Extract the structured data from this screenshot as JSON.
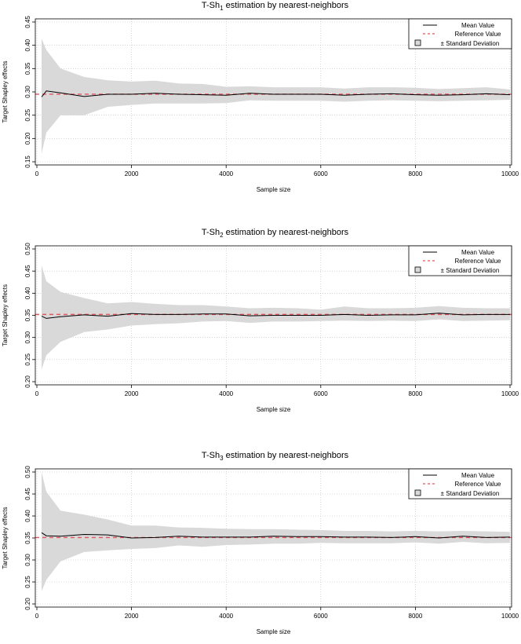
{
  "chart_data": [
    {
      "type": "line",
      "title": {
        "pre": "T-Sh",
        "sub": "1",
        "post": " estimation by nearest-neighbors"
      },
      "xlabel": "Sample size",
      "ylabel": "Target Shapley effects",
      "xlim": [
        0,
        10000
      ],
      "ylim": [
        0.15,
        0.45
      ],
      "xticks": [
        "0",
        "2000",
        "4000",
        "6000",
        "8000",
        "10000"
      ],
      "yticks": [
        "0.15",
        "0.20",
        "0.25",
        "0.30",
        "0.35",
        "0.40",
        "0.45"
      ],
      "grid": true,
      "legend_position": "top-right",
      "legend": [
        "Mean Value",
        "Reference Value",
        "± Standard Deviation"
      ],
      "reference_value": 0.295,
      "x": [
        100,
        200,
        500,
        1000,
        1500,
        2000,
        2500,
        3000,
        3500,
        4000,
        4500,
        5000,
        5500,
        6000,
        6500,
        7000,
        7500,
        8000,
        8500,
        9000,
        9500,
        10000
      ],
      "series": [
        {
          "name": "Mean Value",
          "values": [
            0.289,
            0.302,
            0.298,
            0.29,
            0.295,
            0.295,
            0.297,
            0.295,
            0.294,
            0.293,
            0.297,
            0.295,
            0.295,
            0.295,
            0.293,
            0.295,
            0.296,
            0.294,
            0.293,
            0.294,
            0.296,
            0.294
          ]
        },
        {
          "name": "± Standard Deviation upper",
          "values": [
            0.414,
            0.39,
            0.35,
            0.332,
            0.325,
            0.322,
            0.324,
            0.318,
            0.317,
            0.311,
            0.312,
            0.31,
            0.31,
            0.31,
            0.307,
            0.31,
            0.31,
            0.309,
            0.306,
            0.308,
            0.31,
            0.305
          ]
        },
        {
          "name": "± Standard Deviation lower",
          "values": [
            0.167,
            0.213,
            0.25,
            0.25,
            0.268,
            0.272,
            0.275,
            0.275,
            0.275,
            0.276,
            0.282,
            0.281,
            0.281,
            0.281,
            0.279,
            0.281,
            0.282,
            0.281,
            0.28,
            0.281,
            0.282,
            0.283
          ]
        }
      ],
      "colors": {
        "mean": "#000000",
        "reference": "#e8545e",
        "band": "#d9d9d9",
        "grid": "#bdbdbd"
      }
    },
    {
      "type": "line",
      "title": {
        "pre": "T-Sh",
        "sub": "2",
        "post": " estimation by nearest-neighbors"
      },
      "xlabel": "Sample size",
      "ylabel": "Target Shapley effects",
      "xlim": [
        0,
        10000
      ],
      "ylim": [
        0.2,
        0.5
      ],
      "xticks": [
        "0",
        "2000",
        "4000",
        "6000",
        "8000",
        "10000"
      ],
      "yticks": [
        "0.20",
        "0.25",
        "0.30",
        "0.35",
        "0.40",
        "0.45",
        "0.50"
      ],
      "grid": true,
      "legend_position": "top-right",
      "legend": [
        "Mean Value",
        "Reference Value",
        "± Standard Deviation"
      ],
      "reference_value": 0.352,
      "x": [
        100,
        200,
        500,
        1000,
        1500,
        2000,
        2500,
        3000,
        3500,
        4000,
        4500,
        5000,
        5500,
        6000,
        6500,
        7000,
        7500,
        8000,
        8500,
        9000,
        9500,
        10000
      ],
      "series": [
        {
          "name": "Mean Value",
          "values": [
            0.348,
            0.343,
            0.347,
            0.351,
            0.348,
            0.354,
            0.352,
            0.352,
            0.353,
            0.353,
            0.349,
            0.35,
            0.35,
            0.35,
            0.352,
            0.35,
            0.351,
            0.351,
            0.355,
            0.351,
            0.352,
            0.352
          ]
        },
        {
          "name": "± Standard Deviation upper",
          "values": [
            0.463,
            0.427,
            0.403,
            0.389,
            0.377,
            0.38,
            0.376,
            0.373,
            0.373,
            0.37,
            0.366,
            0.367,
            0.366,
            0.363,
            0.37,
            0.366,
            0.366,
            0.367,
            0.371,
            0.367,
            0.366,
            0.366
          ]
        },
        {
          "name": "± Standard Deviation lower",
          "values": [
            0.228,
            0.26,
            0.29,
            0.312,
            0.318,
            0.327,
            0.33,
            0.332,
            0.336,
            0.337,
            0.333,
            0.336,
            0.336,
            0.337,
            0.338,
            0.337,
            0.338,
            0.337,
            0.341,
            0.337,
            0.338,
            0.339
          ]
        }
      ],
      "colors": {
        "mean": "#000000",
        "reference": "#e8545e",
        "band": "#d9d9d9",
        "grid": "#bdbdbd"
      }
    },
    {
      "type": "line",
      "title": {
        "pre": "T-Sh",
        "sub": "3",
        "post": " estimation by nearest-neighbors"
      },
      "xlabel": "Sample size",
      "ylabel": "Target Shapley effects",
      "xlim": [
        0,
        10000
      ],
      "ylim": [
        0.2,
        0.5
      ],
      "xticks": [
        "0",
        "2000",
        "4000",
        "6000",
        "8000",
        "10000"
      ],
      "yticks": [
        "0.20",
        "0.25",
        "0.30",
        "0.35",
        "0.40",
        "0.45",
        "0.50"
      ],
      "grid": true,
      "legend_position": "top-right",
      "legend": [
        "Mean Value",
        "Reference Value",
        "± Standard Deviation"
      ],
      "reference_value": 0.351,
      "x": [
        100,
        200,
        500,
        1000,
        1500,
        2000,
        2500,
        3000,
        3500,
        4000,
        4500,
        5000,
        5500,
        6000,
        6500,
        7000,
        7500,
        8000,
        8500,
        9000,
        9500,
        10000
      ],
      "series": [
        {
          "name": "Mean Value",
          "values": [
            0.362,
            0.355,
            0.354,
            0.358,
            0.357,
            0.35,
            0.351,
            0.354,
            0.352,
            0.352,
            0.352,
            0.354,
            0.353,
            0.353,
            0.352,
            0.352,
            0.351,
            0.353,
            0.35,
            0.354,
            0.351,
            0.352
          ]
        },
        {
          "name": "± Standard Deviation upper",
          "values": [
            0.5,
            0.455,
            0.412,
            0.403,
            0.392,
            0.378,
            0.378,
            0.374,
            0.373,
            0.371,
            0.37,
            0.37,
            0.369,
            0.368,
            0.366,
            0.366,
            0.365,
            0.366,
            0.365,
            0.366,
            0.365,
            0.364
          ]
        },
        {
          "name": "± Standard Deviation lower",
          "values": [
            0.229,
            0.255,
            0.297,
            0.318,
            0.322,
            0.325,
            0.327,
            0.333,
            0.33,
            0.334,
            0.335,
            0.337,
            0.337,
            0.339,
            0.338,
            0.338,
            0.338,
            0.34,
            0.337,
            0.341,
            0.338,
            0.339
          ]
        }
      ],
      "colors": {
        "mean": "#000000",
        "reference": "#e8545e",
        "band": "#d9d9d9",
        "grid": "#bdbdbd"
      }
    }
  ]
}
